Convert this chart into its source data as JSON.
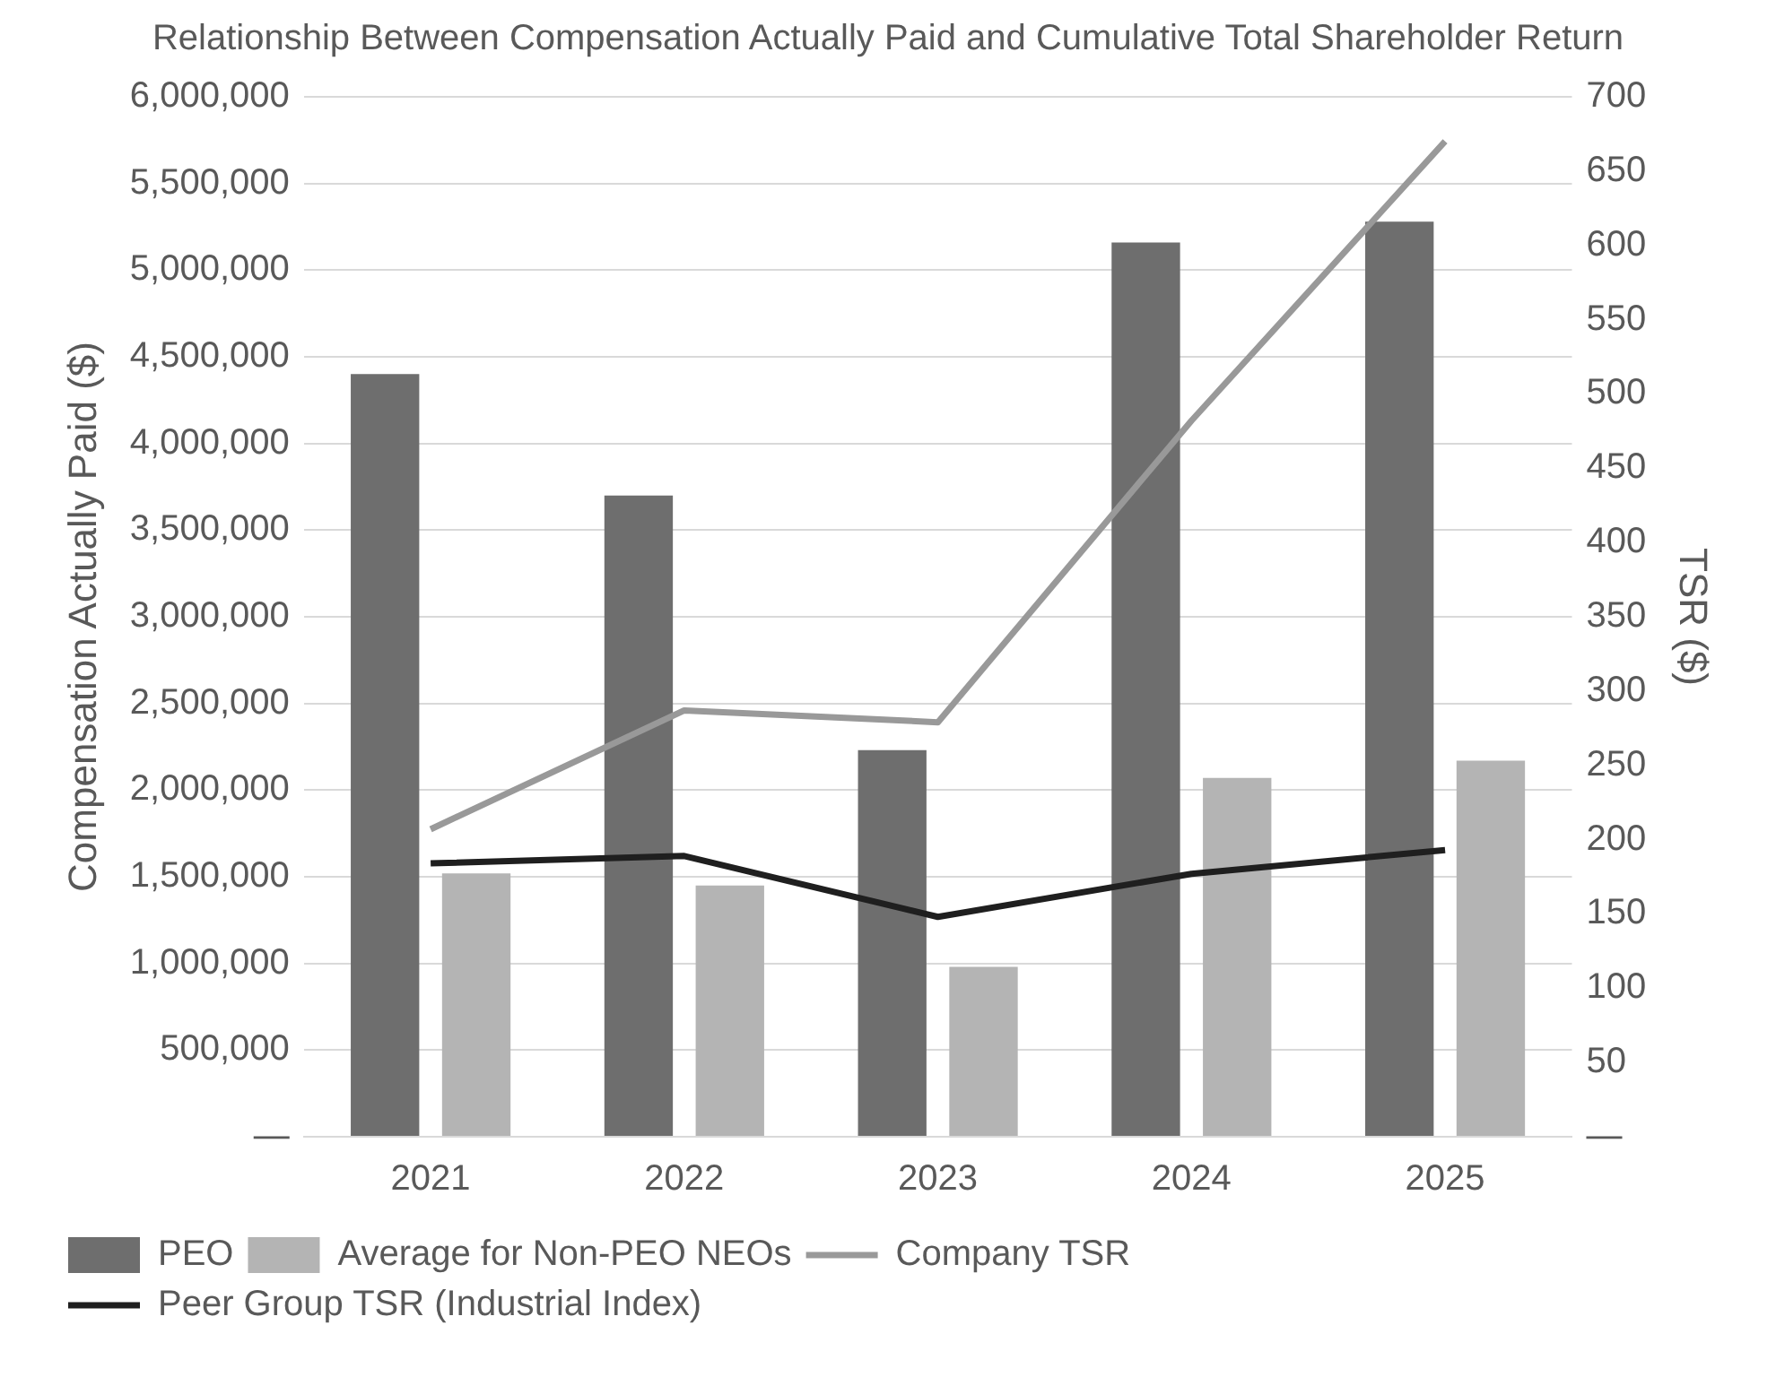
{
  "chart_data": {
    "type": "bar",
    "title": "Relationship Between Compensation Actually Paid and Cumulative Total Shareholder Return",
    "categories": [
      "2021",
      "2022",
      "2023",
      "2024",
      "2025"
    ],
    "series": [
      {
        "name": "PEO",
        "color": "#6e6e6e",
        "values": [
          4400000,
          3700000,
          2230000,
          5160000,
          5280000
        ]
      },
      {
        "name": "Average for Non-PEO NEOs",
        "color": "#b4b4b4",
        "values": [
          1520000,
          1450000,
          980000,
          2070000,
          2170000
        ]
      },
      {
        "name": "Company TSR",
        "type": "line",
        "axis": "y2",
        "color": "#999999",
        "values": [
          207,
          287,
          279,
          482,
          670
        ]
      },
      {
        "name": "Peer Group TSR (Industrial Index)",
        "type": "line",
        "axis": "y2",
        "color": "#1f1f1f",
        "values": [
          184,
          189,
          148,
          177,
          193
        ]
      }
    ],
    "ylabel": "Compensation Actually Paid ($)",
    "y2label": "TSR ($)",
    "ylim": [
      0,
      6000000
    ],
    "yticks": [
      {
        "value": 0,
        "label": "—"
      },
      {
        "value": 500000,
        "label": "500,000"
      },
      {
        "value": 1000000,
        "label": "1,000,000"
      },
      {
        "value": 1500000,
        "label": "1,500,000"
      },
      {
        "value": 2000000,
        "label": "2,000,000"
      },
      {
        "value": 2500000,
        "label": "2,500,000"
      },
      {
        "value": 3000000,
        "label": "3,000,000"
      },
      {
        "value": 3500000,
        "label": "3,500,000"
      },
      {
        "value": 4000000,
        "label": "4,000,000"
      },
      {
        "value": 4500000,
        "label": "4,500,000"
      },
      {
        "value": 5000000,
        "label": "5,000,000"
      },
      {
        "value": 5500000,
        "label": "5,500,000"
      },
      {
        "value": 6000000,
        "label": "6,000,000"
      }
    ],
    "y2lim": [
      0,
      700
    ],
    "y2ticks": [
      {
        "value": 0,
        "label": "—"
      },
      50,
      100,
      150,
      200,
      250,
      300,
      350,
      400,
      450,
      500,
      550,
      600,
      650,
      700
    ],
    "grid": "y",
    "legend": "bottom",
    "marker": "none",
    "line_style": "solid"
  }
}
